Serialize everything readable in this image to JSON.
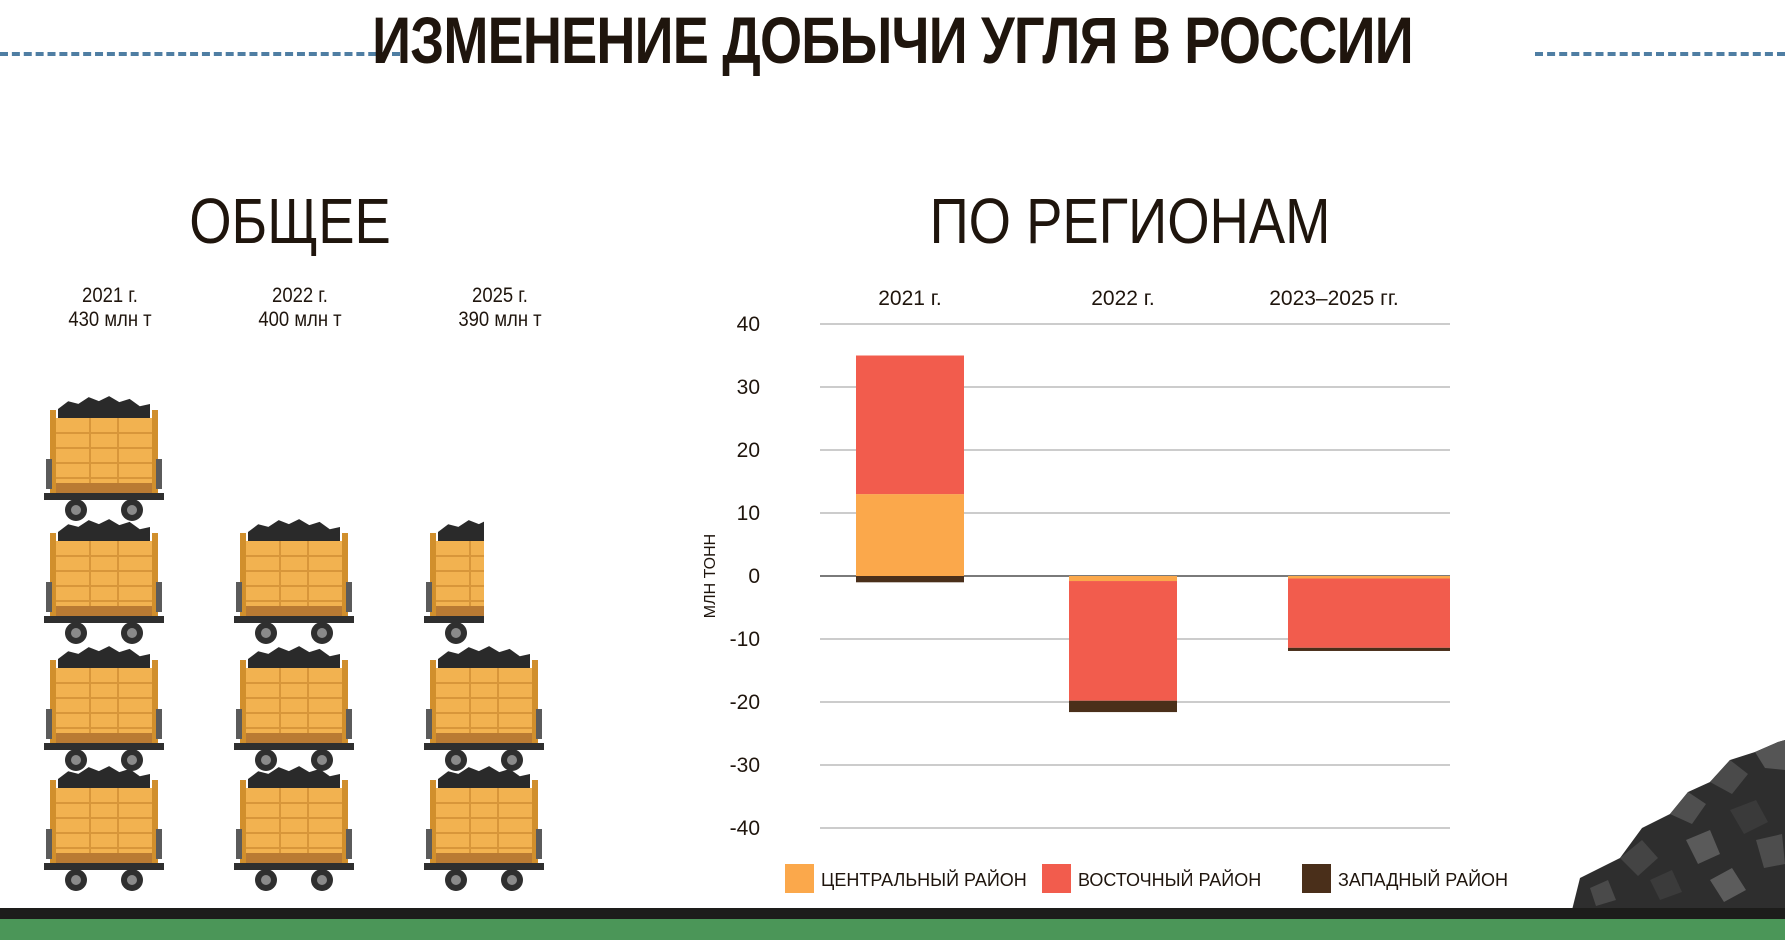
{
  "title": "ИЗМЕНЕНИЕ ДОБЫЧИ УГЛЯ В РОССИИ",
  "left_section": {
    "title": "ОБЩЕЕ",
    "years": [
      {
        "year": "2021 г.",
        "value": "430 млн т",
        "carts": 4
      },
      {
        "year": "2022 г.",
        "value": "400 млн т",
        "carts": 3
      },
      {
        "year": "2025 г.",
        "value": "390 млн т",
        "carts": 2.5
      }
    ]
  },
  "right_section": {
    "title": "ПО РЕГИОНАМ"
  },
  "colors": {
    "central": "#fba84b",
    "eastern": "#f25c4d",
    "western": "#4a2f1a",
    "cart_wood": "#f2b250",
    "coal": "#2a2a2a",
    "dash": "#4f7ea3",
    "ground_green": "#4b9658"
  },
  "chart_data": {
    "type": "bar",
    "stacked": true,
    "categories": [
      "2021 г.",
      "2022 г.",
      "2023–2025 гг."
    ],
    "ylabel": "МЛН ТОНН",
    "xlabel": "",
    "ylim": [
      -40,
      40
    ],
    "yticks": [
      40,
      30,
      20,
      10,
      0,
      -10,
      -20,
      -30,
      -40
    ],
    "grid": true,
    "legend_position": "bottom",
    "series": [
      {
        "name": "ЦЕНТРАЛЬНЫЙ РАЙОН",
        "values": [
          13,
          -0.8,
          -0.4
        ],
        "color": "#fba84b"
      },
      {
        "name": "ВОСТОЧНЫЙ РАЙОН",
        "values": [
          22,
          -19,
          -11
        ],
        "color": "#f25c4d"
      },
      {
        "name": "ЗАПАДНЫЙ РАЙОН",
        "values": [
          -1,
          -1.8,
          -0.5
        ],
        "color": "#4a2f1a"
      }
    ]
  }
}
